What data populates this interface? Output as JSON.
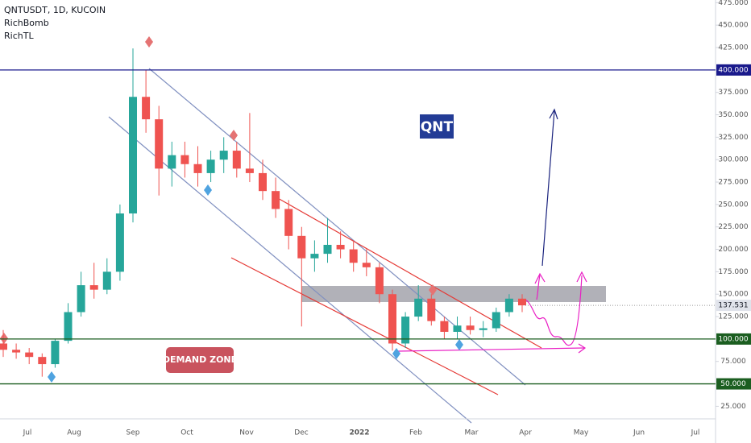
{
  "chart_data": {
    "type": "candlestick",
    "title": "QNTUSDT, 1D, KUCOIN",
    "indicators": [
      "RichBomb",
      "RichTL"
    ],
    "annotations": {
      "symbol": "QNT",
      "zone": "DEMAND ZONE"
    },
    "x_labels": [
      "Jul",
      "Aug",
      "Sep",
      "Oct",
      "Nov",
      "Dec",
      "2022",
      "Feb",
      "Mar",
      "Apr",
      "May",
      "Jun",
      "Jul"
    ],
    "open": [
      95,
      88,
      85,
      80,
      72,
      98,
      130,
      160,
      155,
      175,
      240,
      370,
      345,
      290,
      305,
      295,
      285,
      300,
      310,
      290,
      285,
      265,
      245,
      215,
      190,
      195,
      205,
      200,
      185,
      180,
      150,
      95,
      125,
      145,
      120,
      108,
      115,
      110,
      112,
      130,
      145
    ],
    "high": [
      110,
      95,
      90,
      84,
      100,
      140,
      175,
      185,
      190,
      250,
      424,
      400,
      360,
      320,
      320,
      315,
      310,
      325,
      320,
      352,
      300,
      280,
      255,
      225,
      210,
      235,
      220,
      210,
      200,
      185,
      155,
      130,
      160,
      150,
      125,
      125,
      125,
      120,
      135,
      150,
      150
    ],
    "low": [
      80,
      78,
      72,
      58,
      68,
      95,
      125,
      145,
      150,
      165,
      230,
      330,
      260,
      270,
      280,
      270,
      275,
      285,
      280,
      275,
      255,
      235,
      200,
      114,
      175,
      185,
      190,
      175,
      170,
      140,
      87,
      90,
      120,
      115,
      100,
      100,
      105,
      102,
      108,
      125,
      130
    ],
    "close": [
      88,
      85,
      80,
      72,
      98,
      130,
      160,
      155,
      175,
      240,
      370,
      345,
      290,
      305,
      295,
      285,
      300,
      310,
      290,
      285,
      265,
      245,
      215,
      190,
      195,
      205,
      200,
      185,
      180,
      150,
      95,
      125,
      145,
      120,
      108,
      115,
      110,
      112,
      130,
      145,
      137.531
    ],
    "up_color": "#26a69a",
    "down_color": "#ef5350",
    "ylim": [
      11,
      478
    ],
    "yticks": [
      {
        "value": 25,
        "label": "25.000"
      },
      {
        "value": 75,
        "label": "75.000"
      },
      {
        "value": 125,
        "label": "125.000"
      },
      {
        "value": 150,
        "label": "150.000"
      },
      {
        "value": 175,
        "label": "175.000"
      },
      {
        "value": 200,
        "label": "200.000"
      },
      {
        "value": 225,
        "label": "225.000"
      },
      {
        "value": 250,
        "label": "250.000"
      },
      {
        "value": 275,
        "label": "275.000"
      },
      {
        "value": 300,
        "label": "300.000"
      },
      {
        "value": 325,
        "label": "325.000"
      },
      {
        "value": 350,
        "label": "350.000"
      },
      {
        "value": 375,
        "label": "375.000"
      },
      {
        "value": 425,
        "label": "425.000"
      },
      {
        "value": 450,
        "label": "450.000"
      },
      {
        "value": 475,
        "label": "475.000"
      }
    ],
    "levels": [
      {
        "value": 400,
        "label": "400.000",
        "color": "#1a1a8c"
      },
      {
        "value": 100,
        "label": "100.000",
        "color": "#1b5e20"
      },
      {
        "value": 50,
        "label": "50.000",
        "color": "#1b5e20"
      }
    ],
    "last_price": {
      "value": 137.531,
      "label": "137.531"
    }
  }
}
